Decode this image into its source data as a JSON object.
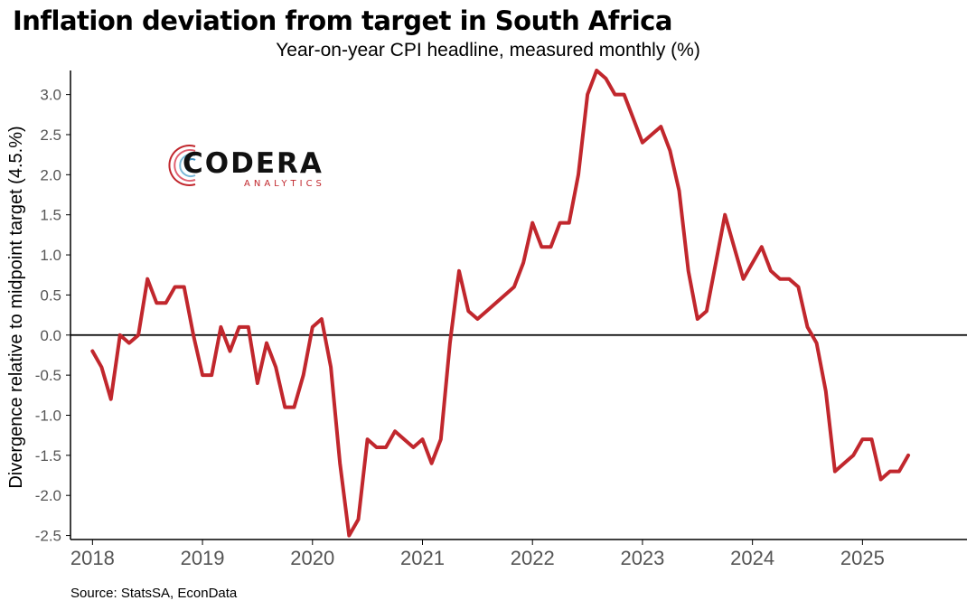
{
  "title": "Inflation deviation from target in South Africa",
  "subtitle": "Year-on-year CPI headline, measured monthly (%)",
  "source": "Source: StatsSA, EconData",
  "logo": {
    "name": "CODERA",
    "tagline": "ANALYTICS"
  },
  "colors": {
    "line": "#c1272d",
    "axis": "#000000",
    "zero_line": "#000000",
    "text": "#555555"
  },
  "chart_data": {
    "type": "line",
    "title": "Inflation deviation from target in South Africa",
    "subtitle": "Year-on-year CPI headline, measured monthly (%)",
    "xlabel": "",
    "ylabel": "Divergence relative to midpoint target (4.5.%)",
    "xlim": [
      2017.8,
      2025.95
    ],
    "ylim": [
      -2.55,
      3.3
    ],
    "x_ticks": [
      2018,
      2019,
      2020,
      2021,
      2022,
      2023,
      2024,
      2025
    ],
    "x_tick_labels": [
      "2018",
      "2019",
      "2020",
      "2021",
      "2022",
      "2023",
      "2024",
      "2025"
    ],
    "y_ticks": [
      -2.5,
      -2.0,
      -1.5,
      -1.0,
      -0.5,
      0.0,
      0.5,
      1.0,
      1.5,
      2.0,
      2.5,
      3.0
    ],
    "y_tick_labels": [
      "-2.5",
      "-2.0",
      "-1.5",
      "-1.0",
      "-0.5",
      "0.0",
      "0.5",
      "1.0",
      "1.5",
      "2.0",
      "2.5",
      "3.0"
    ],
    "zero_line": true,
    "grid": false,
    "series": [
      {
        "color": "#c1272d",
        "x": [
          2018.0,
          2018.083,
          2018.167,
          2018.25,
          2018.333,
          2018.417,
          2018.5,
          2018.583,
          2018.667,
          2018.75,
          2018.833,
          2018.917,
          2019.0,
          2019.083,
          2019.167,
          2019.25,
          2019.333,
          2019.417,
          2019.5,
          2019.583,
          2019.667,
          2019.75,
          2019.833,
          2019.917,
          2020.0,
          2020.083,
          2020.167,
          2020.25,
          2020.333,
          2020.417,
          2020.5,
          2020.583,
          2020.667,
          2020.75,
          2020.833,
          2020.917,
          2021.0,
          2021.083,
          2021.167,
          2021.25,
          2021.333,
          2021.417,
          2021.5,
          2021.583,
          2021.667,
          2021.75,
          2021.833,
          2021.917,
          2022.0,
          2022.083,
          2022.167,
          2022.25,
          2022.333,
          2022.417,
          2022.5,
          2022.583,
          2022.667,
          2022.75,
          2022.833,
          2022.917,
          2023.0,
          2023.083,
          2023.167,
          2023.25,
          2023.333,
          2023.417,
          2023.5,
          2023.583,
          2023.667,
          2023.75,
          2023.833,
          2023.917,
          2024.0,
          2024.083,
          2024.167,
          2024.25,
          2024.333,
          2024.417,
          2024.5,
          2024.583,
          2024.667,
          2024.75,
          2024.833,
          2024.917,
          2025.0,
          2025.083,
          2025.167,
          2025.25,
          2025.333,
          2025.417
        ],
        "y": [
          -0.2,
          -0.4,
          -0.8,
          0.0,
          -0.1,
          0.0,
          0.7,
          0.4,
          0.4,
          0.6,
          0.6,
          0.0,
          -0.5,
          -0.5,
          0.1,
          -0.2,
          0.1,
          0.1,
          -0.6,
          -0.1,
          -0.4,
          -0.9,
          -0.9,
          -0.5,
          0.1,
          0.2,
          -0.4,
          -1.6,
          -2.5,
          -2.3,
          -1.3,
          -1.4,
          -1.4,
          -1.2,
          -1.3,
          -1.4,
          -1.3,
          -1.6,
          -1.3,
          -0.1,
          0.8,
          0.3,
          0.2,
          0.3,
          0.4,
          0.5,
          0.6,
          0.9,
          1.4,
          1.1,
          1.1,
          1.4,
          1.4,
          2.0,
          3.0,
          3.3,
          3.2,
          3.0,
          3.0,
          2.7,
          2.4,
          2.5,
          2.6,
          2.3,
          1.8,
          0.8,
          0.2,
          0.3,
          0.9,
          1.5,
          1.1,
          0.7,
          0.9,
          1.1,
          0.8,
          0.7,
          0.7,
          0.6,
          0.1,
          -0.1,
          -0.7,
          -1.7,
          -1.6,
          -1.5,
          -1.3,
          -1.3,
          -1.8,
          -1.7,
          -1.7,
          -1.5
        ]
      }
    ]
  }
}
